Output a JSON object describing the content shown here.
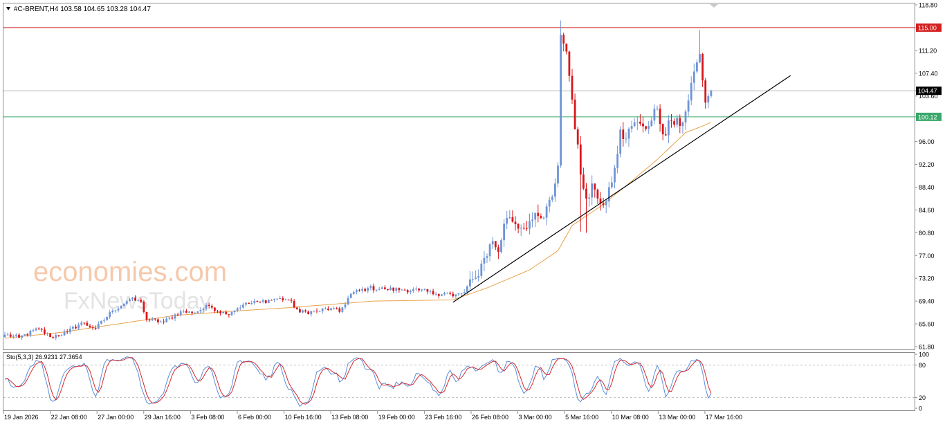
{
  "header": {
    "symbol_line": "#C-BRENT,H4  103.58 104.65 103.28 104.47",
    "menu_arrow": "triangle-down-icon"
  },
  "osc": {
    "label": "Sto(5,3,3) 26.9231 27.3654"
  },
  "watermark": {
    "line1": "economies.com",
    "line2": "FxNewsToday"
  },
  "colors": {
    "bull": "#6f95d6",
    "bear": "#d9171a",
    "ma": "#e8a24a",
    "resistance": "#d32020",
    "support": "#3aa86b",
    "price_line": "#b5b5b5",
    "stoch_main": "#5b8ed8",
    "stoch_signal": "#d4272d"
  },
  "chart_data": [
    {
      "type": "candlestick",
      "title": "#C-BRENT,H4",
      "timeframe": "H4",
      "ohlc_last": {
        "open": 103.58,
        "high": 104.65,
        "low": 103.28,
        "close": 104.47
      },
      "ylim": [
        61.8,
        118.8
      ],
      "y_ticks": [
        "118.80",
        "115.00",
        "111.20",
        "107.40",
        "104.47",
        "103.60",
        "100.12",
        "96.00",
        "92.20",
        "88.40",
        "84.60",
        "80.80",
        "77.00",
        "73.20",
        "69.40",
        "65.60",
        "61.80"
      ],
      "x_tick_labels": [
        "19 Jan 2026",
        "22 Jan 08:00",
        "27 Jan 00:00",
        "29 Jan 16:00",
        "3 Feb 08:00",
        "6 Feb 00:00",
        "10 Feb 16:00",
        "13 Feb 08:00",
        "19 Feb 00:00",
        "23 Feb 16:00",
        "26 Feb 08:00",
        "3 Mar 00:00",
        "5 Mar 16:00",
        "10 Mar 08:00",
        "13 Mar 00:00",
        "17 Mar 16:00"
      ],
      "candles_count": 250,
      "anchors": [
        [
          0,
          63.8
        ],
        [
          5,
          63.3
        ],
        [
          12,
          64.8
        ],
        [
          16,
          63.4
        ],
        [
          22,
          64.2
        ],
        [
          27,
          65.8
        ],
        [
          32,
          64.8
        ],
        [
          38,
          67.8
        ],
        [
          44,
          69.7
        ],
        [
          48,
          69.3
        ],
        [
          50,
          66.3
        ],
        [
          56,
          65.9
        ],
        [
          62,
          67.7
        ],
        [
          66,
          67.4
        ],
        [
          72,
          68.6
        ],
        [
          78,
          67.2
        ],
        [
          84,
          68.8
        ],
        [
          90,
          69.3
        ],
        [
          96,
          69.8
        ],
        [
          100,
          69.6
        ],
        [
          104,
          67.5
        ],
        [
          110,
          67.7
        ],
        [
          115,
          68.2
        ],
        [
          118,
          67.6
        ],
        [
          122,
          70.6
        ],
        [
          128,
          71.6
        ],
        [
          134,
          71.4
        ],
        [
          140,
          71.3
        ],
        [
          146,
          71.2
        ],
        [
          152,
          70.6
        ],
        [
          156,
          70.8
        ],
        [
          158,
          70.2
        ],
        [
          162,
          70.9
        ],
        [
          166,
          73.3
        ],
        [
          169,
          76.6
        ],
        [
          172,
          79.4
        ],
        [
          174,
          77.6
        ],
        [
          176,
          82.3
        ],
        [
          178,
          83.4
        ],
        [
          182,
          81.6
        ],
        [
          186,
          83.0
        ],
        [
          190,
          83.3
        ],
        [
          193,
          86.8
        ],
        [
          195,
          92.0
        ],
        [
          196,
          113.8
        ],
        [
          198,
          111.0
        ],
        [
          200,
          103.0
        ],
        [
          203,
          90.5
        ],
        [
          205,
          86.5
        ],
        [
          207,
          89.0
        ],
        [
          209,
          86.5
        ],
        [
          211,
          85.4
        ],
        [
          213,
          88.4
        ],
        [
          215,
          91.6
        ],
        [
          217,
          98.0
        ],
        [
          219,
          96.5
        ],
        [
          221,
          98.6
        ],
        [
          224,
          99.0
        ],
        [
          227,
          98.6
        ],
        [
          230,
          101.5
        ],
        [
          232,
          97.2
        ],
        [
          235,
          99.4
        ],
        [
          238,
          98.6
        ],
        [
          240,
          101.0
        ],
        [
          242,
          105.8
        ],
        [
          244,
          109.2
        ],
        [
          245,
          110.6
        ],
        [
          246,
          106.2
        ],
        [
          247,
          102.5
        ],
        [
          248,
          103.58
        ],
        [
          249,
          104.47
        ]
      ],
      "ma_anchors": [
        [
          0,
          63.2
        ],
        [
          20,
          64.2
        ],
        [
          40,
          65.6
        ],
        [
          60,
          67.0
        ],
        [
          80,
          67.7
        ],
        [
          100,
          68.3
        ],
        [
          130,
          69.4
        ],
        [
          158,
          69.6
        ],
        [
          170,
          71.6
        ],
        [
          185,
          74.6
        ],
        [
          195,
          77.8
        ],
        [
          200,
          82.0
        ],
        [
          210,
          85.2
        ],
        [
          220,
          89.0
        ],
        [
          230,
          93.0
        ],
        [
          240,
          97.5
        ],
        [
          245,
          98.4
        ],
        [
          249,
          99.2
        ]
      ],
      "levels": {
        "resistance": 115.0,
        "support": 100.12,
        "current": 104.47,
        "current_label": "104.47",
        "resistance_label": "115.00",
        "support_label": "100.12"
      },
      "trendline": [
        [
          158,
          69.2
        ],
        [
          277,
          107.0
        ]
      ],
      "spikes": [
        [
          196,
          116.2
        ],
        [
          198,
          111.8
        ],
        [
          203,
          81.0
        ],
        [
          205,
          80.8
        ],
        [
          245,
          114.6
        ]
      ]
    },
    {
      "type": "line",
      "title": "Sto(5,3,3)",
      "main_value": 26.9231,
      "signal_value": 27.3654,
      "ylim": [
        0,
        100
      ],
      "y_ticks": [
        "100",
        "80",
        "20",
        "0"
      ],
      "levels": [
        80,
        20
      ]
    }
  ]
}
